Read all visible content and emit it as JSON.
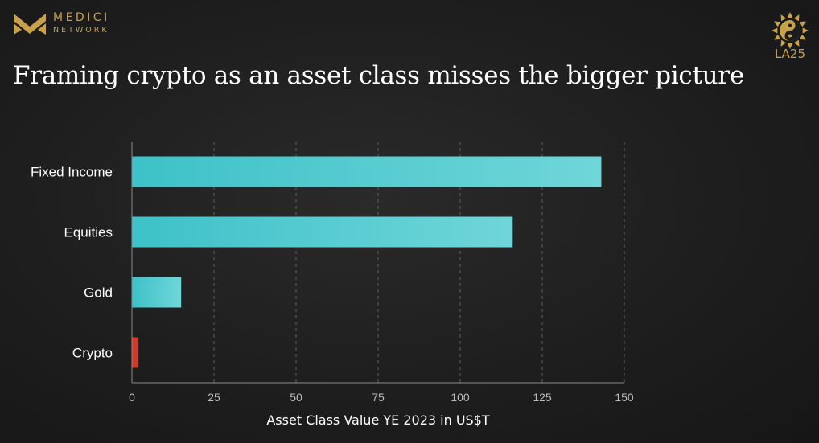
{
  "brand": {
    "name": "MEDICI",
    "subtitle": "NETWORK",
    "color": "#c8a24a"
  },
  "badge": {
    "text": "LA25",
    "icon": "yin-yang-sun-icon"
  },
  "title": "Framing crypto as an asset class misses the bigger picture",
  "chart_data": {
    "type": "bar",
    "orientation": "horizontal",
    "categories": [
      "Fixed Income",
      "Equities",
      "Gold",
      "Crypto"
    ],
    "values": [
      143,
      116,
      15,
      2
    ],
    "colors": [
      "#4ccbd1",
      "#4ccbd1",
      "#4ccbd1",
      "#d2392b"
    ],
    "xlabel": "Asset Class Value YE 2023 in US$T",
    "ylabel": "",
    "xlim": [
      0,
      150
    ],
    "xticks": [
      0,
      25,
      50,
      75,
      100,
      125,
      150
    ],
    "grid": "vertical-dashed",
    "legend": "none"
  }
}
